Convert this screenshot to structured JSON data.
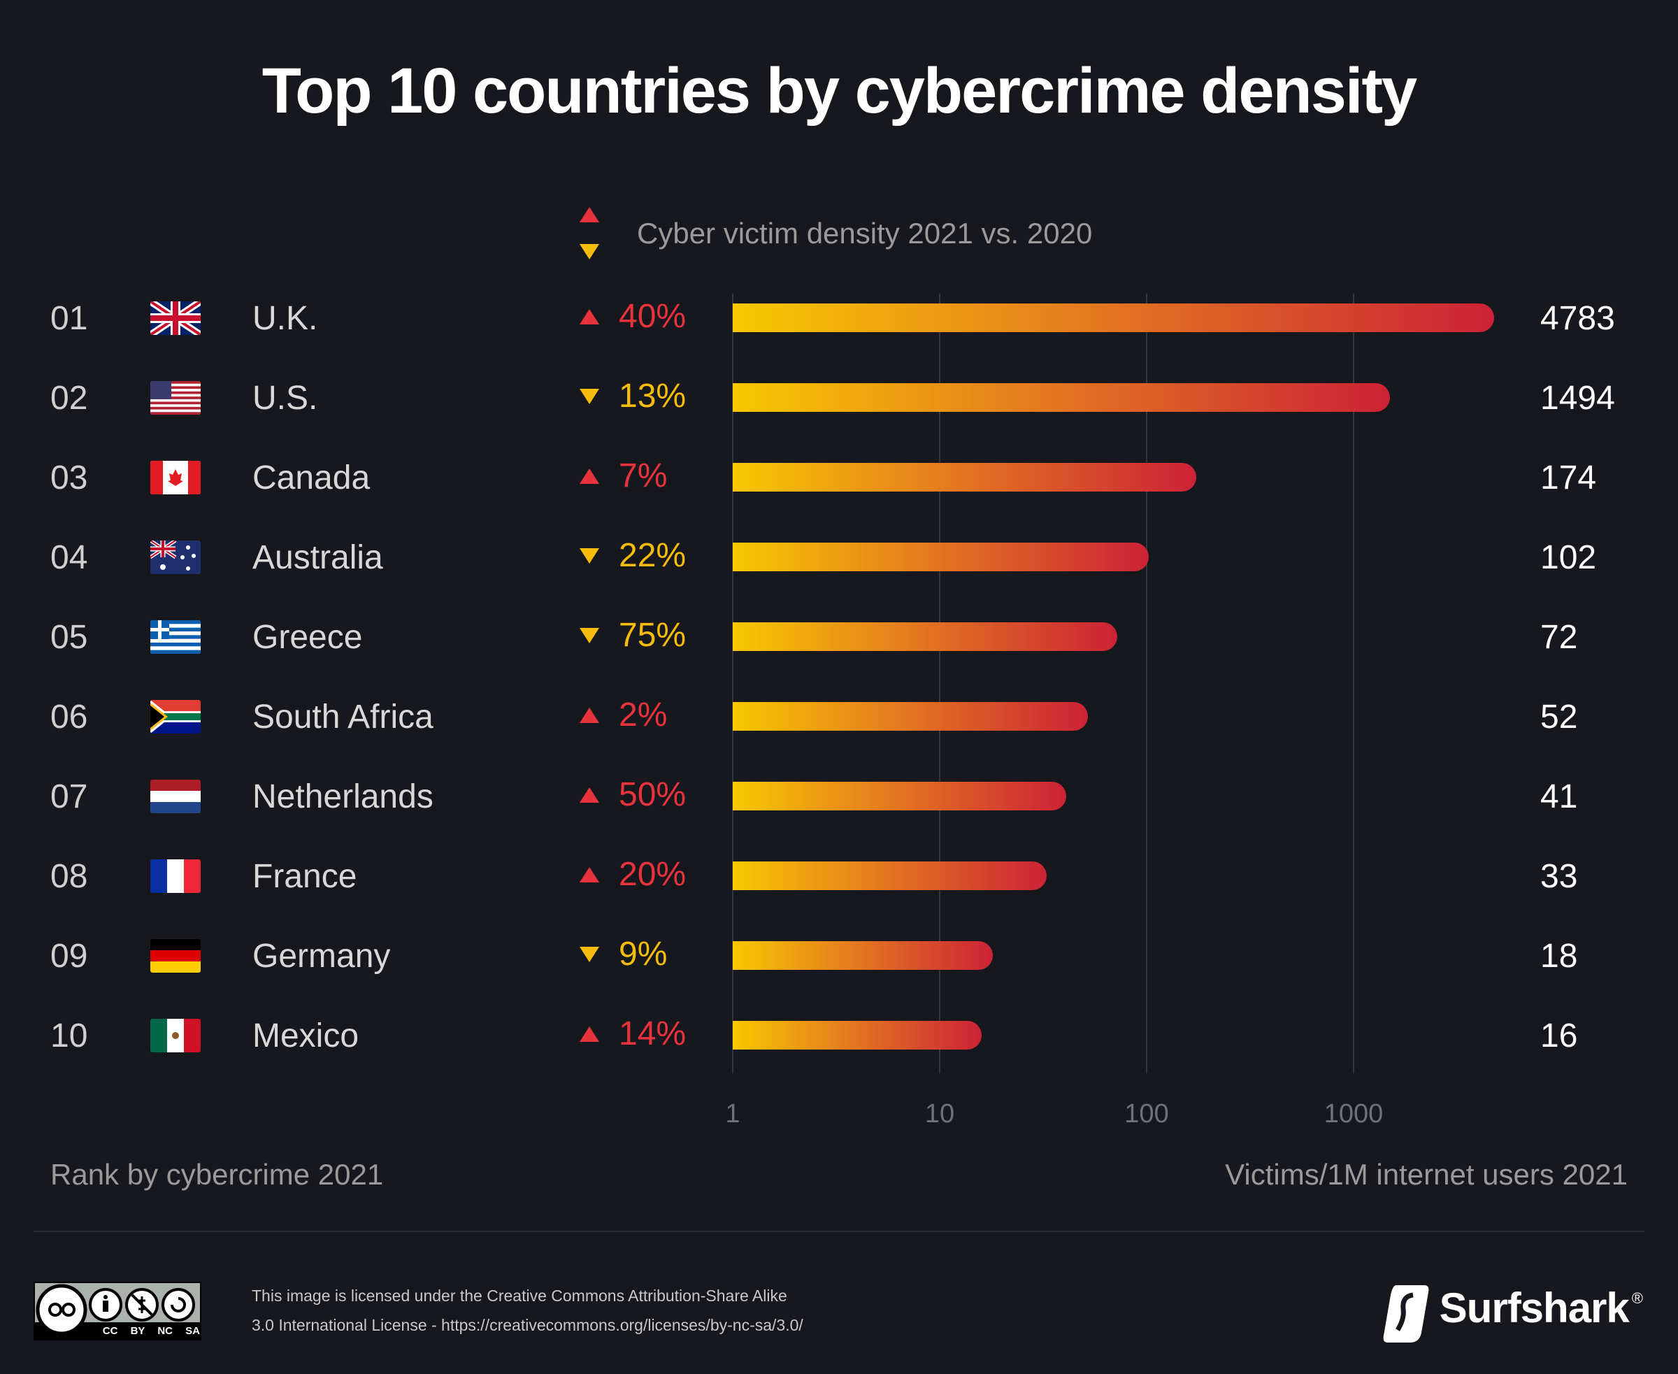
{
  "title": "Top 10 countries by cybercrime density",
  "legend": {
    "label": "Cyber victim density 2021 vs. 2020",
    "up_color": "#e8323c",
    "down_color": "#f6bc0c"
  },
  "chart_data": {
    "type": "bar",
    "orientation": "horizontal",
    "x_scale": "log",
    "xlim": [
      1,
      10000
    ],
    "x_ticks": [
      "1",
      "10",
      "100",
      "1000"
    ],
    "grid": true,
    "xlabel": "Victims/1M internet users 2021",
    "ylabel": "Rank by cybercrime 2021",
    "categories": [
      "U.K.",
      "U.S.",
      "Canada",
      "Australia",
      "Greece",
      "South Africa",
      "Netherlands",
      "France",
      "Germany",
      "Mexico"
    ],
    "ranks": [
      "01",
      "02",
      "03",
      "04",
      "05",
      "06",
      "07",
      "08",
      "09",
      "10"
    ],
    "values": [
      4783,
      1494,
      174,
      102,
      72,
      52,
      41,
      33,
      18,
      16
    ],
    "value_labels": [
      "4783",
      "1494",
      "174",
      "102",
      "72",
      "52",
      "41",
      "33",
      "18",
      "16"
    ],
    "change": [
      "40%",
      "13%",
      "7%",
      "22%",
      "75%",
      "2%",
      "50%",
      "20%",
      "9%",
      "14%"
    ],
    "change_direction": [
      "up",
      "down",
      "up",
      "down",
      "down",
      "up",
      "up",
      "up",
      "down",
      "up"
    ],
    "flags": [
      "uk",
      "us",
      "canada",
      "australia",
      "greece",
      "south-africa",
      "netherlands",
      "france",
      "germany",
      "mexico"
    ],
    "bar_gradient": [
      "#f8c800",
      "#e57c1e",
      "#cc2236"
    ]
  },
  "footer": {
    "license_line1": "This image is licensed under the Creative Commons Attribution-Share Alike",
    "license_line2": "3.0 International License - https://creativecommons.org/licenses/by-nc-sa/3.0/",
    "cc_badge": "CC BY NC SA",
    "brand": "Surfshark",
    "brand_mark": "®"
  }
}
